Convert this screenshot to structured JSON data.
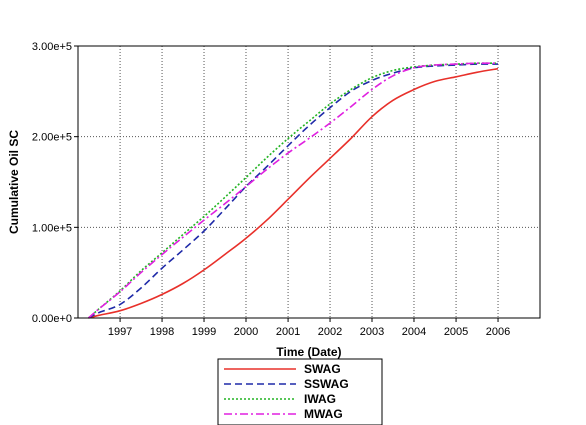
{
  "chart_data": {
    "type": "line",
    "title": "",
    "xlabel": "Time (Date)",
    "ylabel": "Cumulative Oil SC",
    "x_tick_labels": [
      "1997",
      "1998",
      "1999",
      "2000",
      "2001",
      "2002",
      "2003",
      "2004",
      "2005",
      "2006"
    ],
    "y_tick_labels": [
      "0.00e+0",
      "1.00e+5",
      "2.00e+5",
      "3.00e+5"
    ],
    "xlim": [
      "1996-01-01",
      "2007-01-01"
    ],
    "ylim": [
      0,
      300000
    ],
    "grid": true,
    "grid_style": "dotted",
    "legend_position": "bottom-center",
    "series": [
      {
        "name": "SWAG",
        "color": "#e8302a",
        "line_style": "solid",
        "points": [
          [
            "1996-04-01",
            0
          ],
          [
            "1996-07-01",
            3000
          ],
          [
            "1997-01-01",
            8000
          ],
          [
            "1997-07-01",
            16000
          ],
          [
            "1998-01-01",
            26000
          ],
          [
            "1998-07-01",
            38000
          ],
          [
            "1999-01-01",
            53000
          ],
          [
            "1999-07-01",
            70000
          ],
          [
            "2000-01-01",
            88000
          ],
          [
            "2000-07-01",
            108000
          ],
          [
            "2001-01-01",
            131000
          ],
          [
            "2001-07-01",
            154000
          ],
          [
            "2002-01-01",
            176000
          ],
          [
            "2002-07-01",
            198000
          ],
          [
            "2003-01-01",
            222000
          ],
          [
            "2003-07-01",
            240000
          ],
          [
            "2004-01-01",
            252000
          ],
          [
            "2004-07-01",
            261000
          ],
          [
            "2005-01-01",
            266000
          ],
          [
            "2005-07-01",
            271000
          ],
          [
            "2006-01-01",
            275000
          ]
        ]
      },
      {
        "name": "SSWAG",
        "color": "#1f2aa8",
        "line_style": "dashed",
        "points": [
          [
            "1996-04-01",
            0
          ],
          [
            "1996-07-01",
            6000
          ],
          [
            "1997-01-01",
            15000
          ],
          [
            "1997-07-01",
            33000
          ],
          [
            "1998-01-01",
            55000
          ],
          [
            "1998-07-01",
            75000
          ],
          [
            "1999-01-01",
            96000
          ],
          [
            "1999-07-01",
            120000
          ],
          [
            "2000-01-01",
            145000
          ],
          [
            "2000-07-01",
            167000
          ],
          [
            "2001-01-01",
            190000
          ],
          [
            "2001-07-01",
            212000
          ],
          [
            "2002-01-01",
            232000
          ],
          [
            "2002-07-01",
            250000
          ],
          [
            "2003-01-01",
            262000
          ],
          [
            "2003-07-01",
            270000
          ],
          [
            "2004-01-01",
            276000
          ],
          [
            "2004-07-01",
            278000
          ],
          [
            "2005-01-01",
            279000
          ],
          [
            "2005-07-01",
            280000
          ],
          [
            "2006-01-01",
            280000
          ]
        ]
      },
      {
        "name": "IWAG",
        "color": "#22b422",
        "line_style": "dotted",
        "points": [
          [
            "1996-04-01",
            0
          ],
          [
            "1996-07-01",
            10000
          ],
          [
            "1997-01-01",
            30000
          ],
          [
            "1997-07-01",
            52000
          ],
          [
            "1998-01-01",
            72000
          ],
          [
            "1998-07-01",
            92000
          ],
          [
            "1999-01-01",
            112000
          ],
          [
            "1999-07-01",
            133000
          ],
          [
            "2000-01-01",
            155000
          ],
          [
            "2000-07-01",
            177000
          ],
          [
            "2001-01-01",
            198000
          ],
          [
            "2001-07-01",
            217000
          ],
          [
            "2002-01-01",
            236000
          ],
          [
            "2002-07-01",
            252000
          ],
          [
            "2003-01-01",
            265000
          ],
          [
            "2003-07-01",
            273000
          ],
          [
            "2004-01-01",
            277000
          ],
          [
            "2004-07-01",
            279000
          ],
          [
            "2005-01-01",
            280000
          ],
          [
            "2005-07-01",
            281000
          ],
          [
            "2006-01-01",
            281000
          ]
        ]
      },
      {
        "name": "MWAG",
        "color": "#e020e0",
        "line_style": "dash-dot",
        "points": [
          [
            "1996-04-01",
            0
          ],
          [
            "1996-07-01",
            10000
          ],
          [
            "1997-01-01",
            29000
          ],
          [
            "1997-07-01",
            50000
          ],
          [
            "1998-01-01",
            70000
          ],
          [
            "1998-07-01",
            89000
          ],
          [
            "1999-01-01",
            108000
          ],
          [
            "1999-07-01",
            126000
          ],
          [
            "2000-01-01",
            145000
          ],
          [
            "2000-07-01",
            164000
          ],
          [
            "2001-01-01",
            182000
          ],
          [
            "2001-07-01",
            198000
          ],
          [
            "2002-01-01",
            215000
          ],
          [
            "2002-07-01",
            233000
          ],
          [
            "2003-01-01",
            252000
          ],
          [
            "2003-07-01",
            267000
          ],
          [
            "2004-01-01",
            276000
          ],
          [
            "2004-07-01",
            279000
          ],
          [
            "2005-01-01",
            280000
          ],
          [
            "2005-07-01",
            281000
          ],
          [
            "2006-01-01",
            281000
          ]
        ]
      }
    ]
  }
}
